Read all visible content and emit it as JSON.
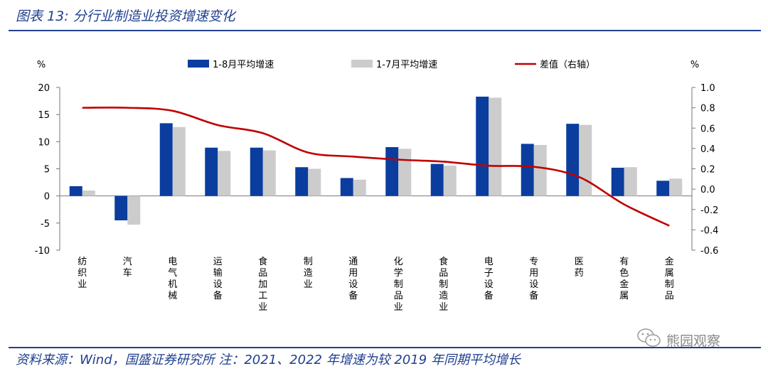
{
  "header": {
    "title": "图表 13:  分行业制造业投资增速变化"
  },
  "footer": {
    "source": "资料来源：Wind，国盛证券研究所  注：2021、2022 年增速为较 2019 年同期平均增长"
  },
  "watermark": {
    "text": "熊园观察",
    "icon": "wechat-icon"
  },
  "colors": {
    "series1": "#0a3d9e",
    "series2": "#cccccc",
    "line": "#c00000",
    "axis": "#777777"
  },
  "chart_data": {
    "type": "bar",
    "categories": [
      "纺织业",
      "汽车",
      "电气机械",
      "运输设备",
      "食品加工业",
      "制造业",
      "通用设备",
      "化学制品业",
      "食品制造业",
      "电子设备",
      "专用设备",
      "医药",
      "有色金属",
      "金属制品"
    ],
    "series": [
      {
        "name": "1-8月平均增速",
        "kind": "bar",
        "axis": "left",
        "values": [
          1.8,
          -4.5,
          13.4,
          8.9,
          8.9,
          5.3,
          3.3,
          9.0,
          5.9,
          18.3,
          9.6,
          13.3,
          5.2,
          2.8
        ]
      },
      {
        "name": "1-7月平均增速",
        "kind": "bar",
        "axis": "left",
        "values": [
          1.0,
          -5.3,
          12.7,
          8.3,
          8.4,
          5.0,
          3.0,
          8.7,
          5.6,
          18.1,
          9.4,
          13.1,
          5.3,
          3.2
        ]
      },
      {
        "name": "差值（右轴）",
        "kind": "line",
        "axis": "right",
        "values": [
          0.8,
          0.8,
          0.77,
          0.63,
          0.55,
          0.36,
          0.32,
          0.29,
          0.27,
          0.23,
          0.22,
          0.12,
          -0.15,
          -0.36
        ]
      }
    ],
    "y_left": {
      "label": "%",
      "min": -10,
      "max": 20,
      "ticks": [
        "-10",
        "-5",
        "0",
        "5",
        "10",
        "15",
        "20"
      ]
    },
    "y_right": {
      "label": "%",
      "min": -0.6,
      "max": 1.0,
      "ticks": [
        "-0.6",
        "-0.4",
        "-0.2",
        "0.0",
        "0.2",
        "0.4",
        "0.6",
        "0.8",
        "1.0"
      ]
    },
    "legend": "top",
    "grid": false
  }
}
